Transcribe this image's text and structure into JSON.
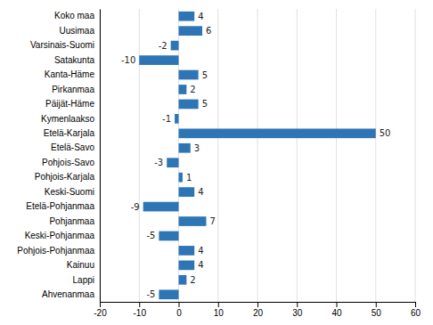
{
  "chart_data": {
    "type": "bar",
    "orientation": "horizontal",
    "categories": [
      "Ahvenanmaa",
      "Lappi",
      "Kainuu",
      "Pohjois-Pohjanmaa",
      "Keski-Pohjanmaa",
      "Pohjanmaa",
      "Etelä-Pohjanmaa",
      "Keski-Suomi",
      "Pohjois-Karjala",
      "Pohjois-Savo",
      "Etelä-Savo",
      "Etelä-Karjala",
      "Kymenlaakso",
      "Päijät-Häme",
      "Pirkanmaa",
      "Kanta-Häme",
      "Satakunta",
      "Varsinais-Suomi",
      "Uusimaa",
      "Koko maa"
    ],
    "values": [
      -5,
      2,
      4,
      4,
      -5,
      7,
      -9,
      4,
      1,
      -3,
      3,
      50,
      -1,
      5,
      2,
      5,
      -10,
      -2,
      6,
      4
    ],
    "color": "#2e75b6",
    "xlim": [
      -20,
      60
    ],
    "xticks": [
      -20,
      -10,
      0,
      10,
      20,
      30,
      40,
      50,
      60
    ],
    "grid": true,
    "data_labels": true
  }
}
